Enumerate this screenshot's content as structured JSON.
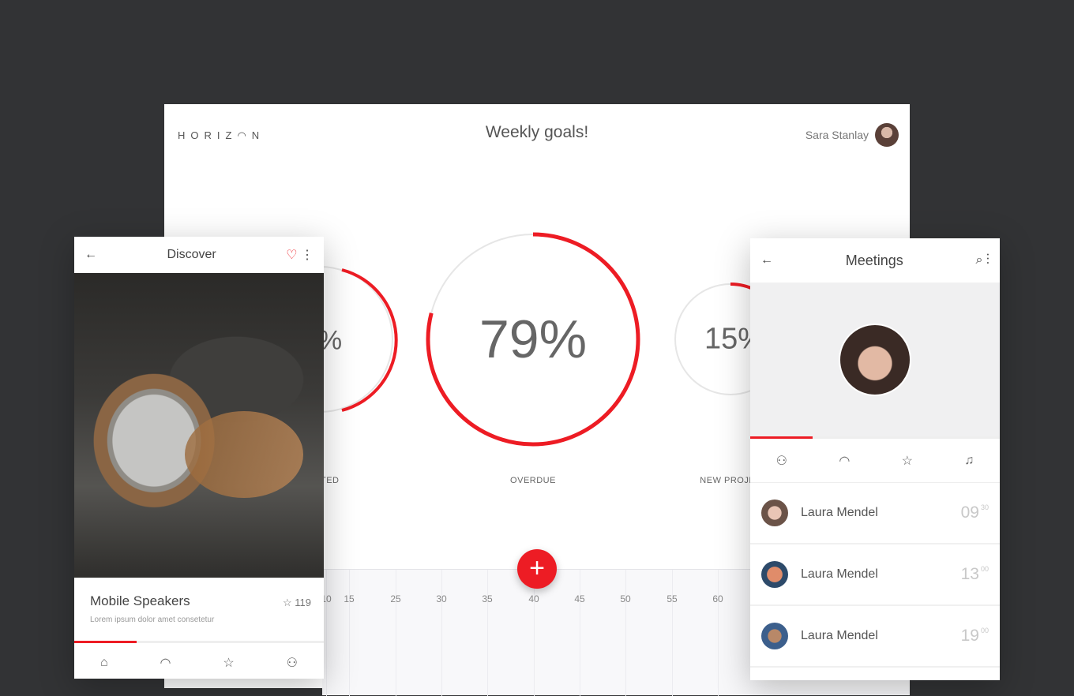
{
  "dashboard": {
    "logo": "HORIZ◠N",
    "title": "Weekly goals!",
    "user_name": "Sara Stanlay",
    "gauges": [
      {
        "label": "COMPLETED",
        "value_text": "%",
        "percent": null
      },
      {
        "label": "OVERDUE",
        "value_text": "79%",
        "percent": 79
      },
      {
        "label": "NEW PROJECTS",
        "value_text": "15%",
        "percent": 15
      }
    ],
    "timeline_ticks": [
      "10",
      "15",
      "25",
      "30",
      "35",
      "40",
      "45",
      "50",
      "55",
      "60"
    ],
    "add_label": "+"
  },
  "discover": {
    "title": "Discover",
    "card_title": "Mobile Speakers",
    "card_subtitle": "Lorem ipsum dolor amet consetetur",
    "rating": "119",
    "progress": 0.25
  },
  "meetings": {
    "title": "Meetings",
    "tab_progress": 0.25,
    "items": [
      {
        "name": "Laura Mendel",
        "hour": "09",
        "minute": "30"
      },
      {
        "name": "Laura Mendel",
        "hour": "13",
        "minute": "00"
      },
      {
        "name": "Laura Mendel",
        "hour": "19",
        "minute": "00"
      }
    ]
  },
  "colors": {
    "accent": "#ed1c24",
    "background": "#323335"
  }
}
